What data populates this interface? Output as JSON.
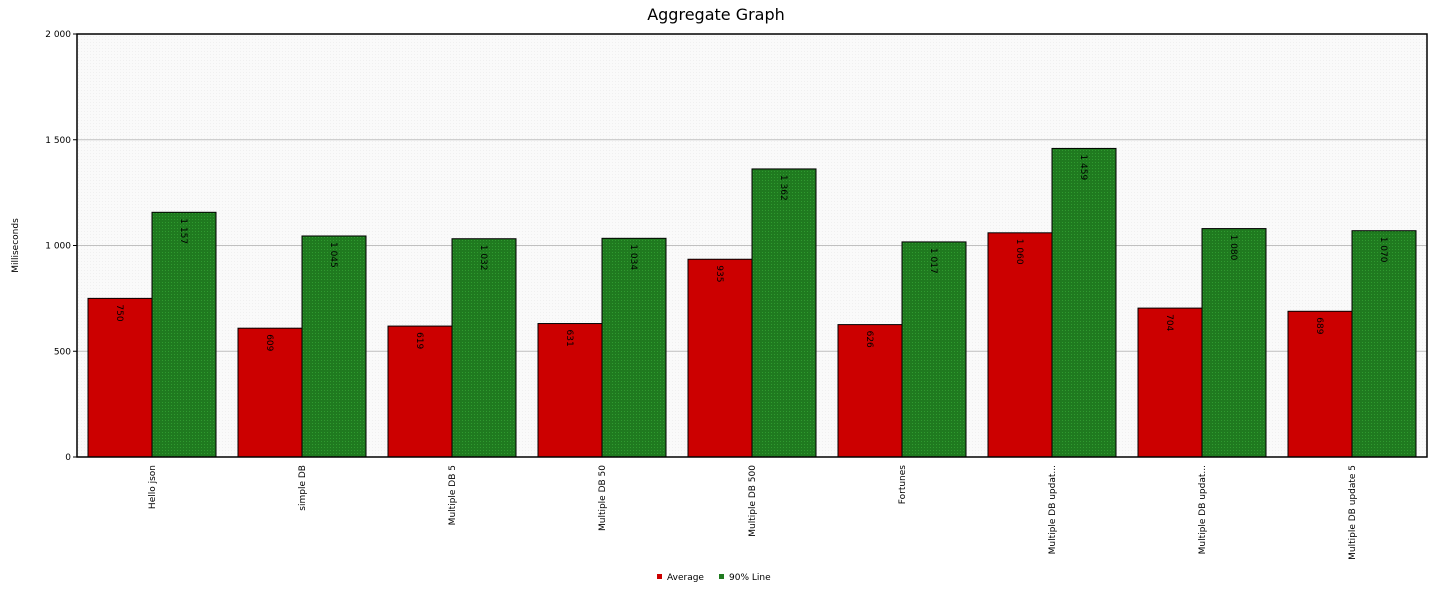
{
  "chart_data": {
    "type": "bar",
    "title": "Aggregate Graph",
    "xlabel": "",
    "ylabel": "Milliseconds",
    "ylim": [
      0,
      2000
    ],
    "yticks": [
      0,
      500,
      1000,
      1500,
      2000
    ],
    "ytick_labels": [
      "0",
      "500",
      "1 000",
      "1 500",
      "2 000"
    ],
    "grid": true,
    "categories": [
      "Hello json",
      "simple DB",
      "Multiple DB 5",
      "Multiple DB 50",
      "Multiple DB 500",
      "Fortunes",
      "Multiple DB updat...",
      "Multiple DB updat...",
      "Multiple DB update 5"
    ],
    "series": [
      {
        "name": "Average",
        "color": "#cc0000",
        "values": [
          750,
          609,
          619,
          631,
          935,
          626,
          1060,
          704,
          689
        ],
        "labels": [
          "750",
          "609",
          "619",
          "631",
          "935",
          "626",
          "1 060",
          "704",
          "689"
        ]
      },
      {
        "name": "90% Line",
        "color": "#1f7a1f",
        "values": [
          1157,
          1045,
          1032,
          1034,
          1362,
          1017,
          1459,
          1080,
          1070
        ],
        "labels": [
          "1 157",
          "1 045",
          "1 032",
          "1 034",
          "1 362",
          "1 017",
          "1 459",
          "1 080",
          "1 070"
        ]
      }
    ],
    "legend": "bottom-center"
  }
}
